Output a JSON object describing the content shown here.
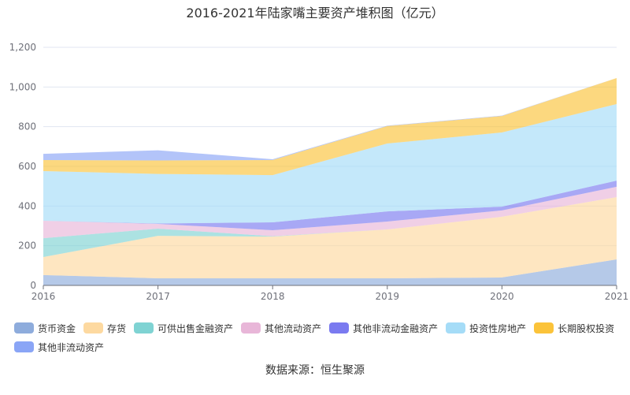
{
  "chart_data": {
    "type": "area",
    "stacked": true,
    "title": "2016-2021年陆家嘴主要资产堆积图（亿元）",
    "x": [
      "2016",
      "2017",
      "2018",
      "2019",
      "2020",
      "2021"
    ],
    "ylim": [
      0,
      1200
    ],
    "yticks": [
      0,
      200,
      400,
      600,
      800,
      1000,
      1200
    ],
    "ytick_labels": [
      "0",
      "200",
      "400",
      "600",
      "800",
      "1,000",
      "1,200"
    ],
    "grid": true,
    "legend_position": "bottom",
    "series": [
      {
        "name": "货币资金",
        "color": "#8eacdc",
        "values": [
          52,
          36,
          36,
          36,
          40,
          131
        ]
      },
      {
        "name": "存货",
        "color": "#fdd9a0",
        "values": [
          91,
          214,
          210,
          246,
          306,
          314
        ]
      },
      {
        "name": "可供出售金融资产",
        "color": "#7fd3d3",
        "values": [
          95,
          36,
          2,
          0,
          0,
          0
        ]
      },
      {
        "name": "其他流动资产",
        "color": "#e8b6d8",
        "values": [
          88,
          24,
          30,
          40,
          32,
          52
        ]
      },
      {
        "name": "其他非流动金融资产",
        "color": "#7a7af0",
        "values": [
          0,
          2,
          40,
          51,
          19,
          31
        ]
      },
      {
        "name": "投资性房地产",
        "color": "#a5dcf7",
        "values": [
          250,
          250,
          238,
          342,
          374,
          386
        ]
      },
      {
        "name": "长期股权投资",
        "color": "#fbc33a",
        "values": [
          56,
          68,
          76,
          88,
          83,
          131
        ]
      },
      {
        "name": "其他非流动资产",
        "color": "#8aa5f6",
        "values": [
          31,
          51,
          4,
          2,
          2,
          0
        ]
      }
    ]
  },
  "source": "数据来源：恒生聚源"
}
